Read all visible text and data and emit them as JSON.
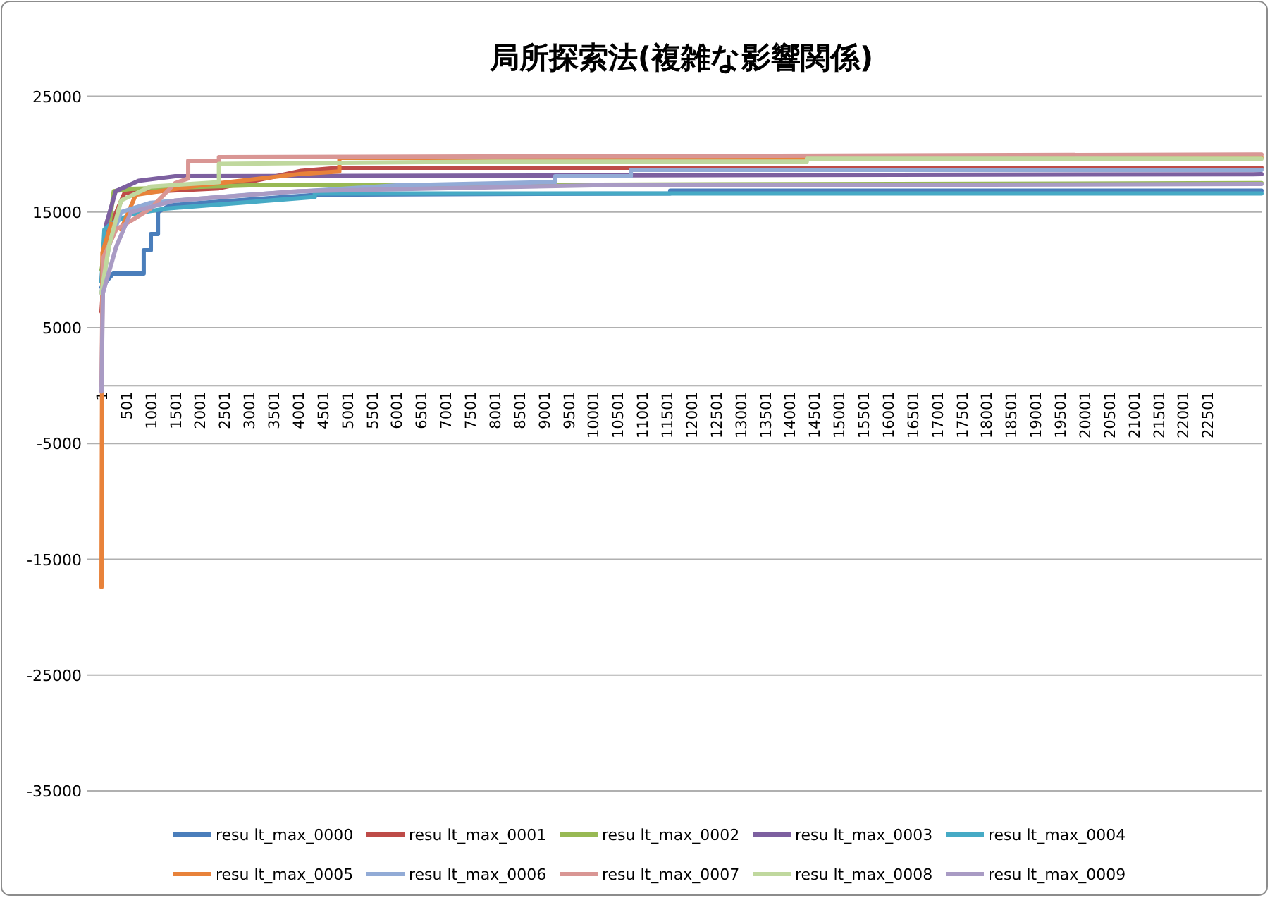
{
  "chart_data": {
    "type": "line",
    "title": "局所探索法(複雑な影響関係)",
    "xlim": [
      1,
      23600
    ],
    "ylim": [
      -35000,
      25000
    ],
    "xticks": [
      1,
      501,
      1001,
      1501,
      2001,
      2501,
      3001,
      3501,
      4001,
      4501,
      5001,
      5501,
      6001,
      6501,
      7001,
      7501,
      8001,
      8501,
      9001,
      9501,
      10001,
      10501,
      11001,
      11501,
      12001,
      12501,
      13001,
      13501,
      14001,
      14501,
      15001,
      15501,
      16001,
      16501,
      17001,
      17501,
      18001,
      18501,
      19001,
      19501,
      20001,
      20501,
      21001,
      21501,
      22001,
      22501
    ],
    "yticks": [
      25000,
      15000,
      5000,
      -5000,
      -15000,
      -25000,
      -35000
    ],
    "grid": "y",
    "legend": "bottom",
    "series": [
      {
        "name": "resu lt_max_0000",
        "color": "#4a7ebb",
        "x": [
          1,
          240,
          860,
          860,
          1005,
          1005,
          1150,
          1150,
          1400,
          4400,
          11570,
          11570,
          23600
        ],
        "values": [
          8500,
          9700,
          9700,
          11700,
          11700,
          13100,
          13100,
          15000,
          15600,
          16500,
          16610,
          16850,
          16850
        ]
      },
      {
        "name": "resu lt_max_0001",
        "color": "#be4b48",
        "x": [
          1,
          100,
          470,
          2390,
          4060,
          4840,
          23600
        ],
        "values": [
          6400,
          13000,
          16650,
          17050,
          18550,
          18830,
          18830
        ]
      },
      {
        "name": "resu lt_max_0002",
        "color": "#98b954",
        "x": [
          1,
          150,
          250,
          600,
          3000,
          23600
        ],
        "values": [
          10000,
          13500,
          16800,
          17000,
          17300,
          17500
        ]
      },
      {
        "name": "resu lt_max_0003",
        "color": "#7d60a0",
        "x": [
          1,
          100,
          290,
          755,
          1500,
          23600
        ],
        "values": [
          9000,
          14000,
          16800,
          17700,
          18100,
          18270
        ]
      },
      {
        "name": "resu lt_max_0004",
        "color": "#46aac5",
        "x": [
          1,
          60,
          200,
          600,
          1300,
          4340,
          4340,
          23600
        ],
        "values": [
          9000,
          13500,
          14000,
          14800,
          15300,
          16300,
          16610,
          16610
        ]
      },
      {
        "name": "resu lt_max_0005",
        "color": "#e8823a",
        "x": [
          1,
          20,
          200,
          400,
          700,
          2000,
          4060,
          4840,
          4840,
          23600
        ],
        "values": [
          -17400,
          11500,
          14000,
          13500,
          16500,
          17300,
          18300,
          18500,
          19680,
          19680
        ]
      },
      {
        "name": "resu lt_max_0006",
        "color": "#92abd6",
        "x": [
          1,
          150,
          400,
          1000,
          3000,
          6000,
          9230,
          9230,
          10770,
          10770,
          23600
        ],
        "values": [
          8000,
          12000,
          15000,
          15800,
          16500,
          17300,
          17600,
          18100,
          18100,
          18640,
          18640
        ]
      },
      {
        "name": "resu lt_max_0007",
        "color": "#d99694",
        "x": [
          1,
          30,
          300,
          700,
          1000,
          1500,
          1765,
          1765,
          2390,
          2390,
          23600
        ],
        "values": [
          0,
          11000,
          13500,
          14500,
          15300,
          17500,
          17900,
          19440,
          19440,
          19740,
          19970
        ]
      },
      {
        "name": "resu lt_max_0008",
        "color": "#c0d89e",
        "x": [
          1,
          150,
          400,
          1000,
          2390,
          2390,
          8000,
          14350,
          14350,
          23600
        ],
        "values": [
          8000,
          12000,
          16000,
          17200,
          17580,
          19160,
          19360,
          19360,
          19600,
          19600
        ]
      },
      {
        "name": "resu lt_max_0009",
        "color": "#a99bc4",
        "x": [
          1,
          30,
          300,
          600,
          1500,
          4000,
          10000,
          23600
        ],
        "values": [
          -500,
          8000,
          12000,
          15000,
          16000,
          16800,
          17300,
          17420
        ]
      }
    ]
  }
}
